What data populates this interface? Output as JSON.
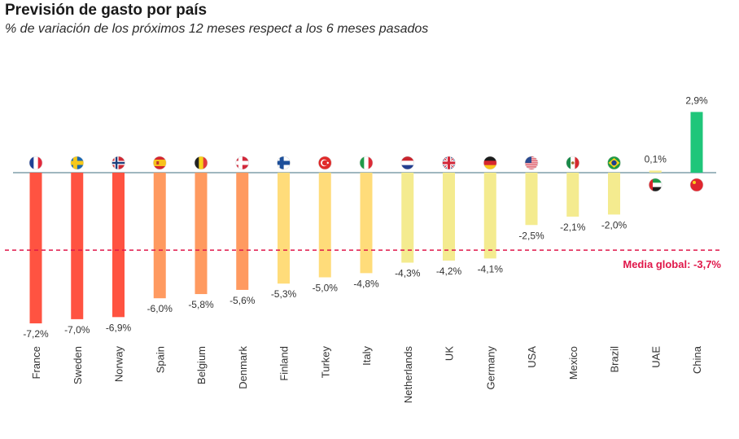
{
  "chart_data": {
    "type": "bar",
    "title": "Previsión de gasto por país",
    "subtitle": "% de variación de los próximos 12 meses respect a los 6 meses pasados",
    "categories": [
      "France",
      "Sweden",
      "Norway",
      "Spain",
      "Belgium",
      "Denmark",
      "Finland",
      "Turkey",
      "Italy",
      "Netherlands",
      "UK",
      "Germany",
      "USA",
      "Mexico",
      "Brazil",
      "UAE",
      "China"
    ],
    "values": [
      -7.2,
      -7.0,
      -6.9,
      -6.0,
      -5.8,
      -5.6,
      -5.3,
      -5.0,
      -4.8,
      -4.3,
      -4.2,
      -4.1,
      -2.5,
      -2.1,
      -2.0,
      0.1,
      2.9
    ],
    "value_labels": [
      "-7,2%",
      "-7,0%",
      "-6,9%",
      "-6,0%",
      "-5,8%",
      "-5,6%",
      "-5,3%",
      "-5,0%",
      "-4,8%",
      "-4,3%",
      "-4,2%",
      "-4,1%",
      "-2,5%",
      "-2,1%",
      "-2,0%",
      "0,1%",
      "2,9%"
    ],
    "bar_colors": [
      "#ff5341",
      "#ff5341",
      "#ff5341",
      "#ff9a60",
      "#ff9a60",
      "#ff9a60",
      "#ffdc7a",
      "#ffdc7a",
      "#ffdc7a",
      "#f4eb8f",
      "#f4eb8f",
      "#f4eb8f",
      "#f4eb8f",
      "#f4eb8f",
      "#f4eb8f",
      "#f4eb8f",
      "#1fc67a"
    ],
    "flag_icons": [
      "france-flag-icon",
      "sweden-flag-icon",
      "norway-flag-icon",
      "spain-flag-icon",
      "belgium-flag-icon",
      "denmark-flag-icon",
      "finland-flag-icon",
      "turkey-flag-icon",
      "italy-flag-icon",
      "netherlands-flag-icon",
      "uk-flag-icon",
      "germany-flag-icon",
      "usa-flag-icon",
      "mexico-flag-icon",
      "brazil-flag-icon",
      "uae-flag-icon",
      "china-flag-icon"
    ],
    "reference_line": {
      "value": -3.7,
      "label": "Media global: -3,7%",
      "color": "#e0174a"
    },
    "baseline_color": "#9fb7bf",
    "ylim": [
      -7.2,
      2.9
    ],
    "grid": false,
    "legend": "none"
  }
}
